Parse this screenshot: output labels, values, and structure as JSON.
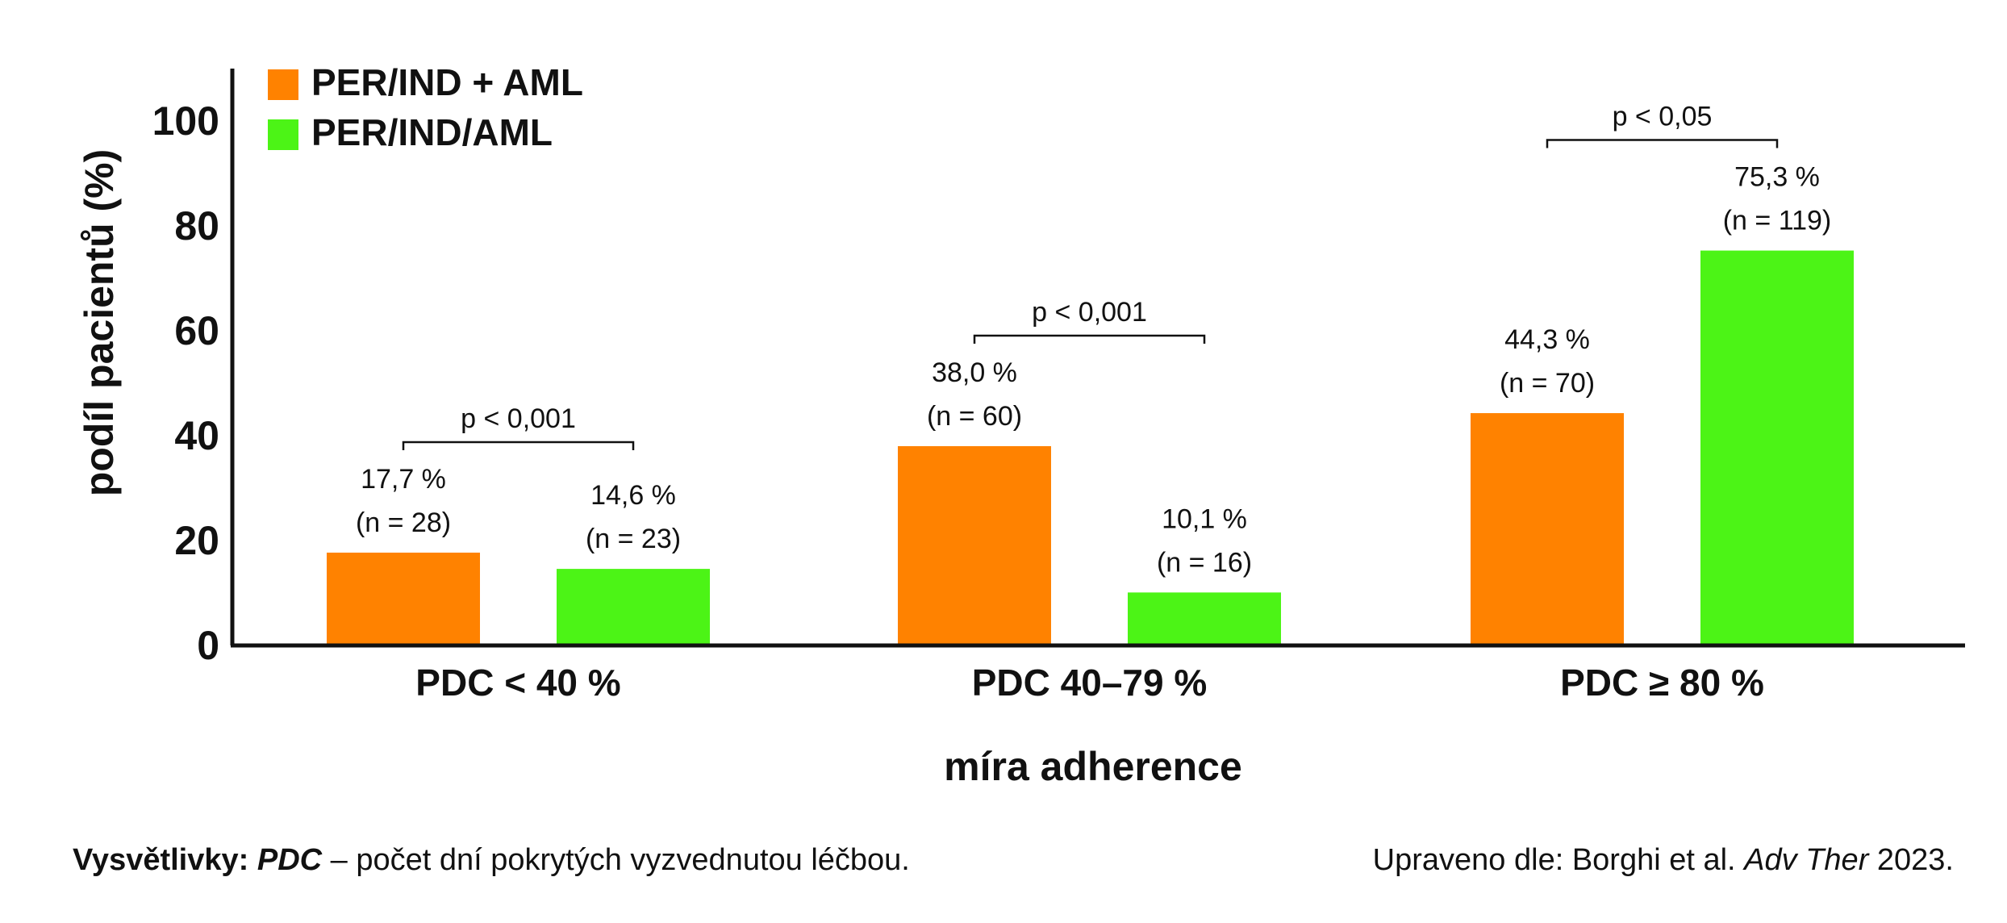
{
  "chart_data": {
    "type": "bar",
    "ylabel": "podíl pacientů (%)",
    "xlabel": "míra adherence",
    "ylim": [
      0,
      110
    ],
    "yticks": [
      "0",
      "20",
      "40",
      "60",
      "80",
      "100"
    ],
    "categories": [
      "PDC < 40 %",
      "PDC 40–79 %",
      "PDC ≥ 80 %"
    ],
    "series": [
      {
        "name": "PER/IND + AML",
        "color": "#ff8200",
        "values": [
          17.7,
          38.0,
          44.3
        ],
        "labels": [
          "17,7 %",
          "38,0 %",
          "44,3 %"
        ],
        "n_labels": [
          "(n = 28)",
          "(n = 60)",
          "(n = 70)"
        ]
      },
      {
        "name": "PER/IND/AML",
        "color": "#4cf416",
        "values": [
          14.6,
          10.1,
          75.3
        ],
        "labels": [
          "14,6 %",
          "10,1 %",
          "75,3 %"
        ],
        "n_labels": [
          "(n = 23)",
          "(n = 16)",
          "(n = 119)"
        ]
      }
    ],
    "significance": [
      "p < 0,001",
      "p < 0,001",
      "p < 0,05"
    ],
    "legend_position": "top-left",
    "grid": false
  },
  "footer": {
    "left_bold": "Vysvětlivky:",
    "left_term": "PDC",
    "left_text": " – počet dní pokrytých vyzvednutou léčbou.",
    "right_prefix": "Upraveno dle: Borghi et al. ",
    "right_journal": "Adv Ther",
    "right_year": " 2023."
  }
}
